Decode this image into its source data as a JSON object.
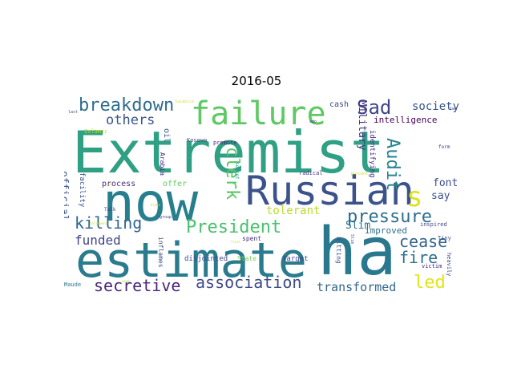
{
  "figure": {
    "title": "2016-05"
  },
  "words": [
    {
      "text": "Extremist",
      "color": "#2fa084"
    },
    {
      "text": "now",
      "color": "#277f8e"
    },
    {
      "text": "estimate",
      "color": "#2b7b8e"
    },
    {
      "text": "ha",
      "color": "#2a788e"
    },
    {
      "text": "Russian",
      "color": "#3b528b"
    },
    {
      "text": "failure",
      "color": "#5ec962"
    },
    {
      "text": "s",
      "color": "#dde318"
    },
    {
      "text": "breakdown",
      "color": "#2f6c8e"
    },
    {
      "text": "President",
      "color": "#4ac16d"
    },
    {
      "text": "killing",
      "color": "#31668e"
    },
    {
      "text": "pressure",
      "color": "#2e6e8e"
    },
    {
      "text": "secretive",
      "color": "#482677"
    },
    {
      "text": "association",
      "color": "#3e4a89"
    },
    {
      "text": "cease",
      "color": "#33638d"
    },
    {
      "text": "fire",
      "color": "#2d708e"
    },
    {
      "text": "led",
      "color": "#e2e418"
    },
    {
      "text": "Sad",
      "color": "#3f4788"
    },
    {
      "text": "clerk",
      "color": "#58c765"
    },
    {
      "text": "Audit",
      "color": "#25848e"
    },
    {
      "text": "others",
      "color": "#39558c"
    },
    {
      "text": "funded",
      "color": "#404688"
    },
    {
      "text": "tolerant",
      "color": "#b8de29"
    },
    {
      "text": "transformed",
      "color": "#31688e"
    },
    {
      "text": "society",
      "color": "#3b528b"
    },
    {
      "text": "Military",
      "color": "#46337f"
    },
    {
      "text": "official",
      "color": "#3a548c"
    },
    {
      "text": "font",
      "color": "#3e4c8a"
    },
    {
      "text": "say",
      "color": "#3c508b"
    },
    {
      "text": "Slim",
      "color": "#2c728e"
    },
    {
      "text": "improved",
      "color": "#2d708e"
    },
    {
      "text": "intelligence",
      "color": "#440154"
    },
    {
      "text": "identifying",
      "color": "#46307e"
    },
    {
      "text": "cash",
      "color": "#3e4989"
    },
    {
      "text": "process",
      "color": "#472c7a"
    },
    {
      "text": "offer",
      "color": "#63cb5f"
    },
    {
      "text": "oil",
      "color": "#365c8d"
    },
    {
      "text": "facility",
      "color": "#3b528b"
    },
    {
      "text": "Arabia",
      "color": "#472a7a"
    },
    {
      "text": "disjointed",
      "color": "#3f4889"
    },
    {
      "text": "State",
      "color": "#7ad151"
    },
    {
      "text": "target",
      "color": "#404588"
    },
    {
      "text": "inflames",
      "color": "#3d4e8a"
    },
    {
      "text": "hitting",
      "color": "#3c4f8a"
    },
    {
      "text": "spent",
      "color": "#46327e"
    },
    {
      "text": "promote",
      "color": "#482173"
    },
    {
      "text": "Kosovo",
      "color": "#414487"
    },
    {
      "text": "radical",
      "color": "#453882"
    },
    {
      "text": "secret",
      "color": "#1f9e89"
    },
    {
      "text": "inspired",
      "color": "#3f4788"
    },
    {
      "text": "heavily",
      "color": "#3e4a89"
    },
    {
      "text": "victim",
      "color": "#482878"
    },
    {
      "text": "Talk",
      "color": "#453781"
    },
    {
      "text": "Tiny",
      "color": "#3b518b"
    },
    {
      "text": "form",
      "color": "#453781"
    },
    {
      "text": "Maude",
      "color": "#2a778e"
    },
    {
      "text": "Islamic",
      "color": "#b5de2b"
    },
    {
      "text": "group",
      "color": "#404588"
    },
    {
      "text": "Slim",
      "color": "#3d4d8a"
    },
    {
      "text": "last",
      "color": "#3d4e8a"
    },
    {
      "text": "two",
      "color": "#3e4989"
    },
    {
      "text": "ago",
      "color": "#453781"
    },
    {
      "text": "percent",
      "color": "#c2df23"
    },
    {
      "text": "foundation",
      "color": "#d0e11c"
    },
    {
      "text": "trust",
      "color": "#cde11d"
    },
    {
      "text": "yet",
      "color": "#d8e219"
    },
    {
      "text": "brake",
      "color": "#c5e021"
    },
    {
      "text": "followers",
      "color": "#bddf26"
    },
    {
      "text": "used",
      "color": "#a5db36"
    }
  ]
}
